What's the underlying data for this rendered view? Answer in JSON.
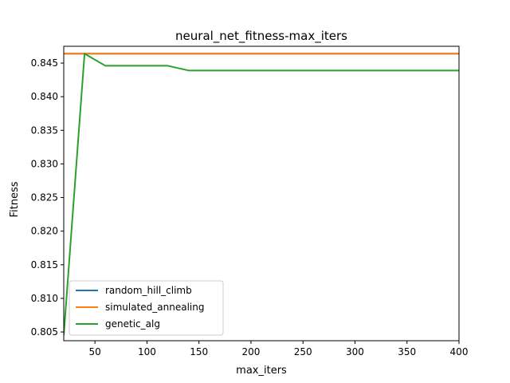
{
  "chart_data": {
    "type": "line",
    "title": "neural_net_fitness-max_iters",
    "xlabel": "max_iters",
    "ylabel": "Fitness",
    "xlim": [
      20,
      400
    ],
    "ylim": [
      0.8037,
      0.8475
    ],
    "xticks": [
      50,
      100,
      150,
      200,
      250,
      300,
      350,
      400
    ],
    "yticks": [
      0.805,
      0.81,
      0.815,
      0.82,
      0.825,
      0.83,
      0.835,
      0.84,
      0.845
    ],
    "xtick_labels": [
      "50",
      "100",
      "150",
      "200",
      "250",
      "300",
      "350",
      "400"
    ],
    "ytick_labels": [
      "0.805",
      "0.810",
      "0.815",
      "0.820",
      "0.825",
      "0.830",
      "0.835",
      "0.840",
      "0.845"
    ],
    "legend_position": "lower-left",
    "grid": false,
    "series": [
      {
        "name": "random_hill_climb",
        "color": "#1f77b4",
        "x": [
          20,
          40,
          60,
          80,
          100,
          120,
          140,
          160,
          180,
          200,
          220,
          240,
          260,
          280,
          300,
          320,
          340,
          360,
          380,
          400
        ],
        "y": [
          0.8464,
          0.8464,
          0.8464,
          0.8464,
          0.8464,
          0.8464,
          0.8464,
          0.8464,
          0.8464,
          0.8464,
          0.8464,
          0.8464,
          0.8464,
          0.8464,
          0.8464,
          0.8464,
          0.8464,
          0.8464,
          0.8464,
          0.8464
        ]
      },
      {
        "name": "simulated_annealing",
        "color": "#ff7f0e",
        "x": [
          20,
          40,
          60,
          80,
          100,
          120,
          140,
          160,
          180,
          200,
          220,
          240,
          260,
          280,
          300,
          320,
          340,
          360,
          380,
          400
        ],
        "y": [
          0.8464,
          0.8464,
          0.8464,
          0.8464,
          0.8464,
          0.8464,
          0.8464,
          0.8464,
          0.8464,
          0.8464,
          0.8464,
          0.8464,
          0.8464,
          0.8464,
          0.8464,
          0.8464,
          0.8464,
          0.8464,
          0.8464,
          0.8464
        ]
      },
      {
        "name": "genetic_alg",
        "color": "#2ca02c",
        "x": [
          20,
          40,
          60,
          80,
          100,
          120,
          140,
          160,
          180,
          200,
          220,
          240,
          260,
          280,
          300,
          320,
          340,
          360,
          380,
          400
        ],
        "y": [
          0.8045,
          0.8464,
          0.8446,
          0.8446,
          0.8446,
          0.8446,
          0.8439,
          0.8439,
          0.8439,
          0.8439,
          0.8439,
          0.8439,
          0.8439,
          0.8439,
          0.8439,
          0.8439,
          0.8439,
          0.8439,
          0.8439,
          0.8439
        ]
      }
    ]
  }
}
